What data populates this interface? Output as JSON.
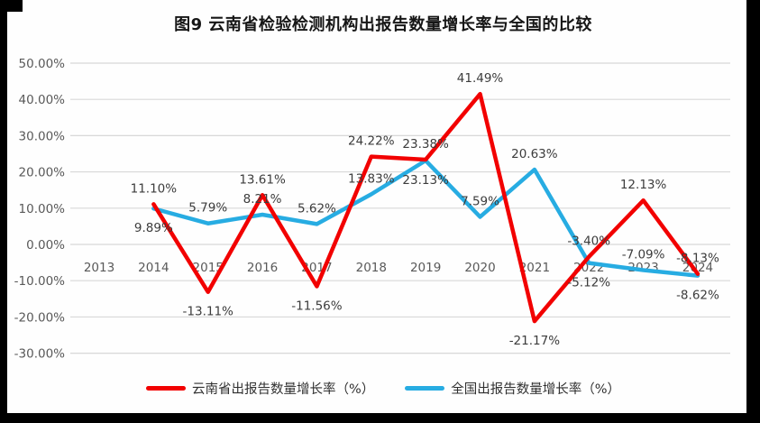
{
  "chart_data": {
    "type": "line",
    "title": "图9 云南省检验检测机构出报告数量增长率与全国的比较",
    "x_categories": [
      "2013",
      "2014",
      "2015",
      "2016",
      "2017",
      "2018",
      "2019",
      "2020",
      "2021",
      "2022",
      "2023",
      "2024"
    ],
    "y_tick_labels": [
      "50.00%",
      "40.00%",
      "30.00%",
      "20.00%",
      "10.00%",
      "0.00%",
      "-10.00%",
      "-20.00%",
      "-30.00%"
    ],
    "y_tick_values": [
      50,
      40,
      30,
      20,
      10,
      0,
      -10,
      -20,
      -30
    ],
    "ylim": [
      -30,
      50
    ],
    "grid": "horizontal",
    "legend_position": "bottom",
    "series": [
      {
        "name": "云南省出报告数量增长率（%）",
        "color": "#f20000",
        "x": [
          "2014",
          "2015",
          "2016",
          "2017",
          "2018",
          "2019",
          "2020",
          "2021",
          "2022",
          "2023",
          "2024"
        ],
        "values": [
          11.1,
          -13.11,
          13.61,
          -11.56,
          24.22,
          23.38,
          41.49,
          -21.17,
          -3.4,
          12.13,
          -8.13
        ],
        "data_labels": [
          "11.10%",
          "-13.11%",
          "13.61%",
          "-11.56%",
          "24.22%",
          "23.38%",
          "41.49%",
          "-21.17%",
          "-3.40%",
          "12.13%",
          "-8.13%"
        ],
        "label_side": [
          "above",
          "below",
          "above",
          "below",
          "above",
          "above",
          "above",
          "below",
          "above",
          "above",
          "above"
        ]
      },
      {
        "name": "全国出报告数量增长率（%）",
        "color": "#27ace2",
        "x": [
          "2014",
          "2015",
          "2016",
          "2017",
          "2018",
          "2019",
          "2020",
          "2021",
          "2022",
          "2023",
          "2024"
        ],
        "values": [
          9.89,
          5.79,
          8.21,
          5.62,
          13.83,
          23.13,
          7.59,
          20.63,
          -5.12,
          -7.09,
          -8.62
        ],
        "data_labels": [
          "9.89%",
          "5.79%",
          "8.21%",
          "5.62%",
          "13.83%",
          "23.13%",
          "7.59%",
          "20.63%",
          "-5.12%",
          "-7.09%",
          "-8.62%"
        ],
        "label_side": [
          "below",
          "above",
          "above",
          "above",
          "above",
          "below",
          "above",
          "above",
          "below",
          "above",
          "below"
        ]
      }
    ]
  },
  "colors": {
    "background": "#fefefe",
    "gridline": "#d8d8d8",
    "axis_text": "#595959",
    "data_label_text": "#3c3c3c",
    "title_text": "#161616",
    "scan_border": "#000000"
  }
}
